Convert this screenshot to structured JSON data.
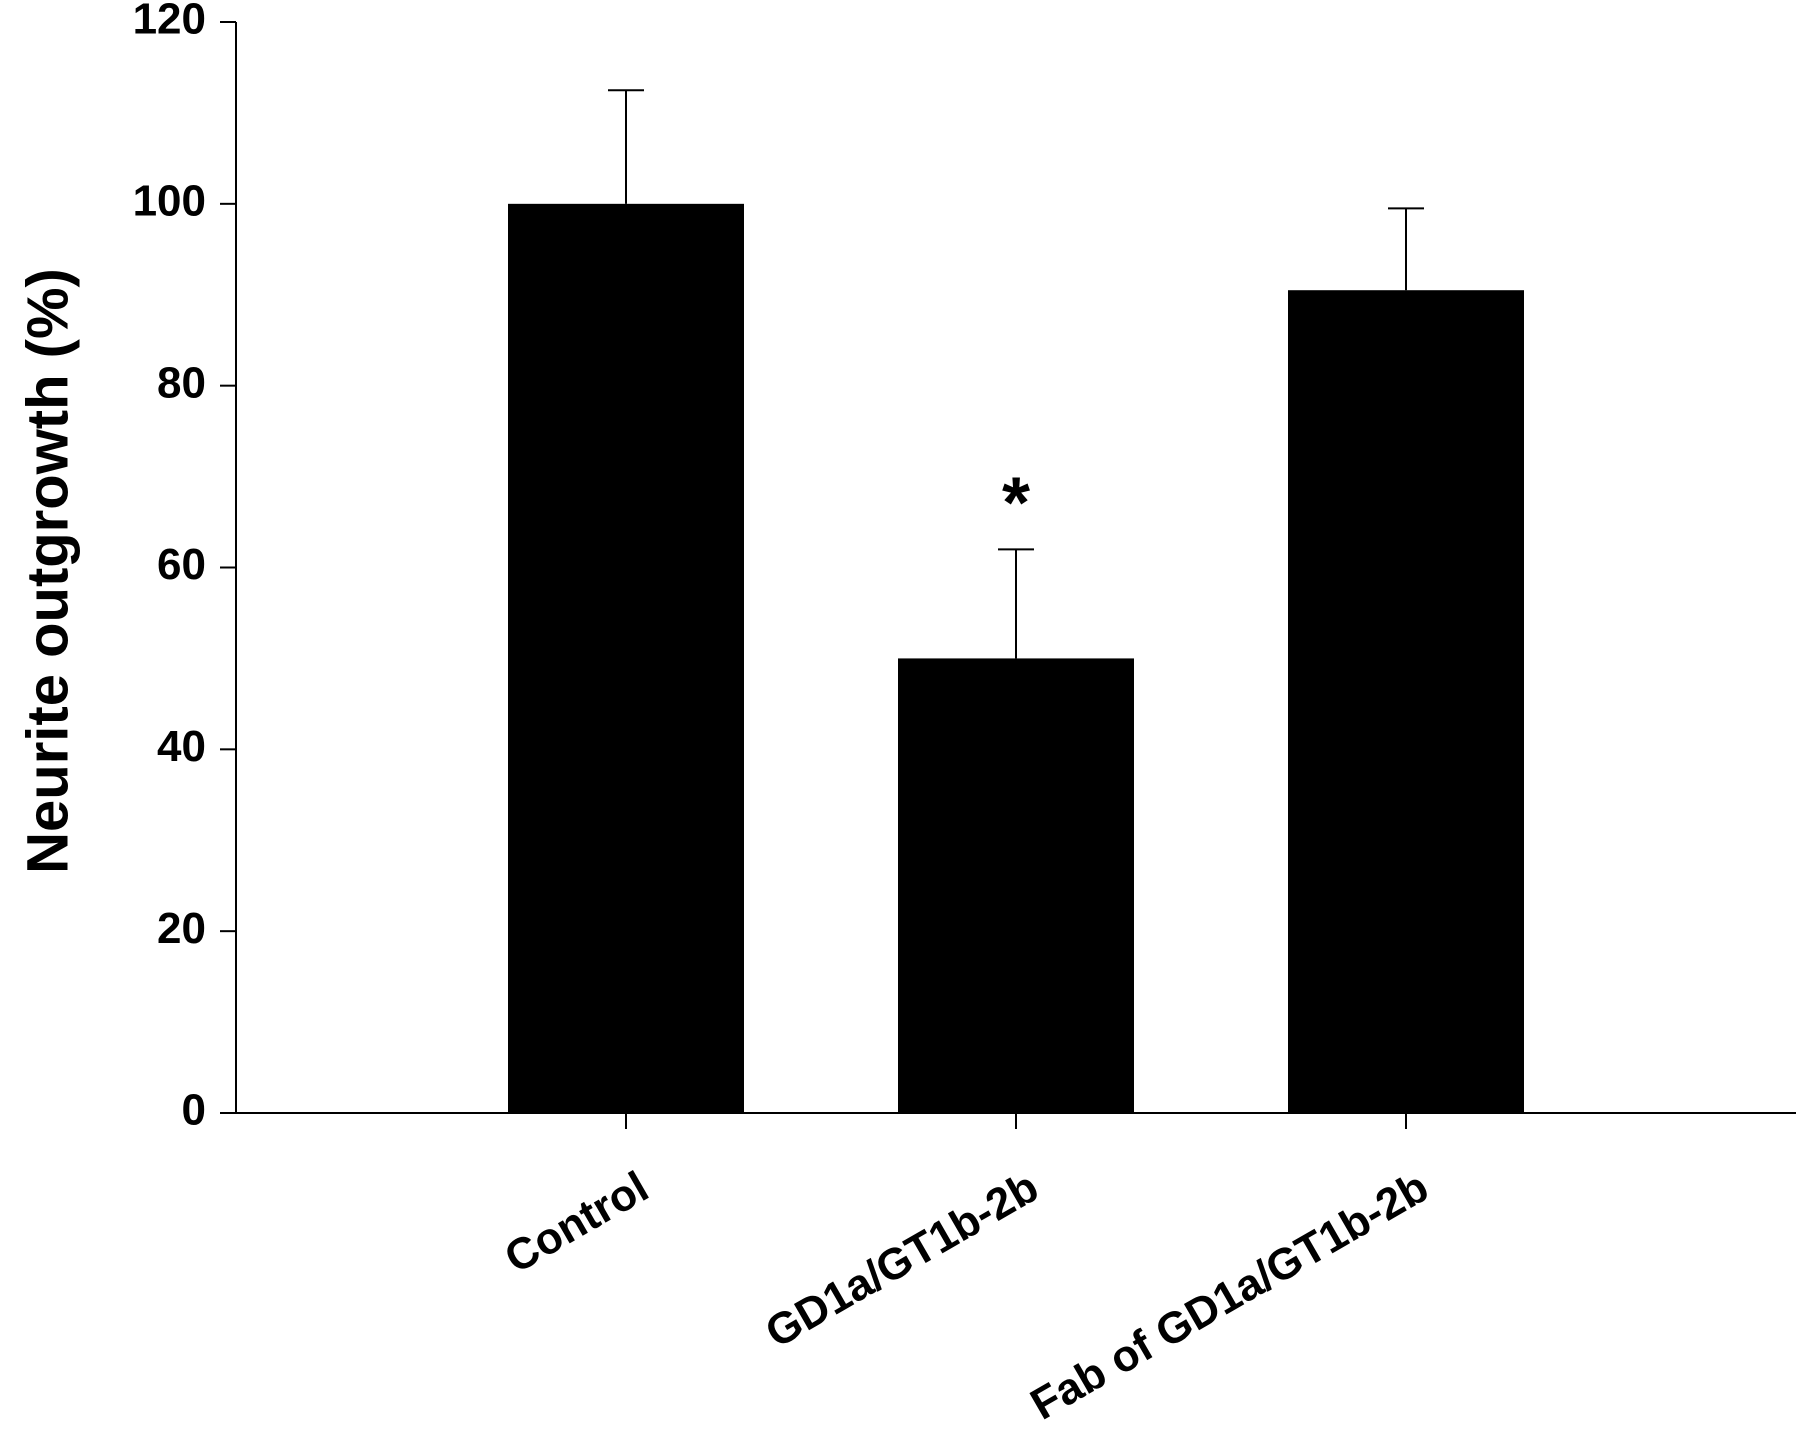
{
  "chart_data": {
    "type": "bar",
    "categories": [
      "Control",
      "GD1a/GT1b-2b",
      "Fab of GD1a/GT1b-2b"
    ],
    "values": [
      100,
      50,
      90.5
    ],
    "errors": [
      12.5,
      12,
      9
    ],
    "annotations": [
      "",
      "*",
      ""
    ],
    "ylabel": "Neurite outgrowth (%)",
    "xlabel": "",
    "ylim": [
      0,
      120
    ],
    "yticks": [
      0,
      20,
      40,
      60,
      80,
      100,
      120
    ],
    "colors": {
      "bar": "#000000",
      "axis": "#000000",
      "background": "#ffffff"
    },
    "grid": false
  }
}
